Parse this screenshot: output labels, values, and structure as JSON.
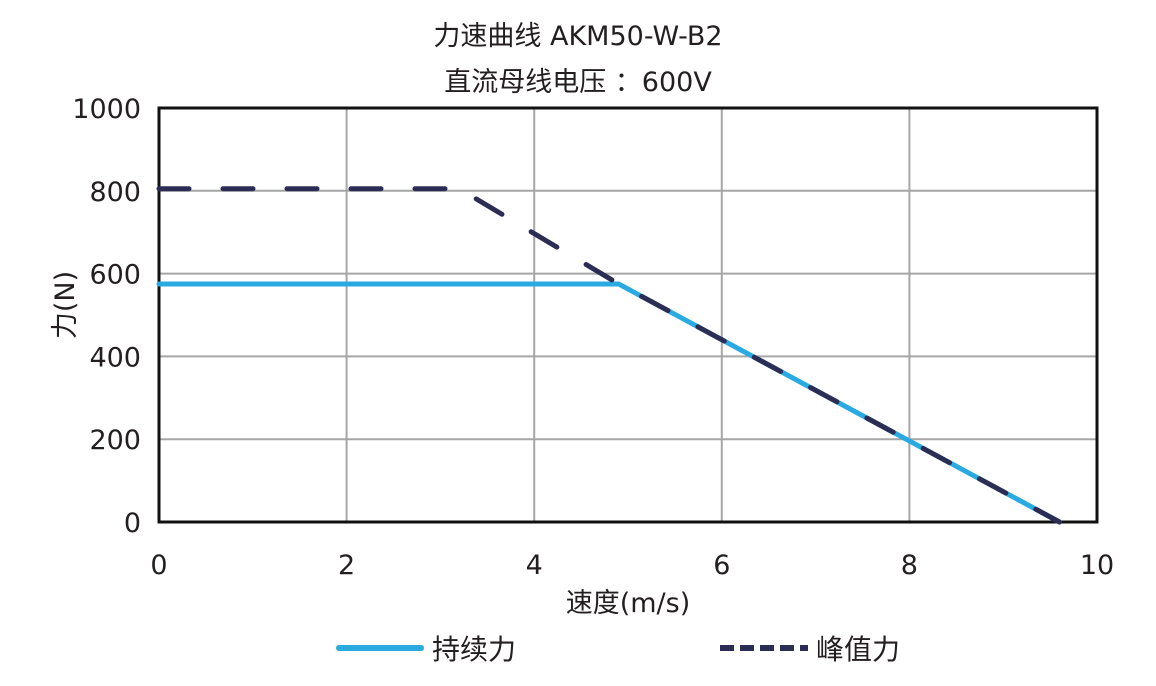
{
  "chart_data": {
    "type": "line",
    "title": "力速曲线  AKM50-W-B2",
    "subtitle": "直流母线电压 ：600V",
    "xlabel": "速度(m/s)",
    "ylabel": "力(N)",
    "xlim": [
      0,
      10
    ],
    "ylim": [
      0,
      1000
    ],
    "x_ticks": [
      "0",
      "2",
      "4",
      "6",
      "8",
      "10"
    ],
    "y_ticks": [
      "0",
      "200",
      "400",
      "600",
      "800",
      "1000"
    ],
    "grid": true,
    "legend_position": "bottom",
    "series": [
      {
        "name": "持续力",
        "style": "solid",
        "color": "#29abe2",
        "x": [
          0,
          4.9,
          9.6
        ],
        "y": [
          575,
          575,
          0
        ]
      },
      {
        "name": "峰值力",
        "style": "dashed",
        "color": "#2b2d54",
        "x": [
          0,
          3.2,
          4.9,
          9.6
        ],
        "y": [
          805,
          805,
          575,
          0
        ]
      }
    ]
  },
  "legend": {
    "continuous": "持续力",
    "peak": "峰值力"
  }
}
